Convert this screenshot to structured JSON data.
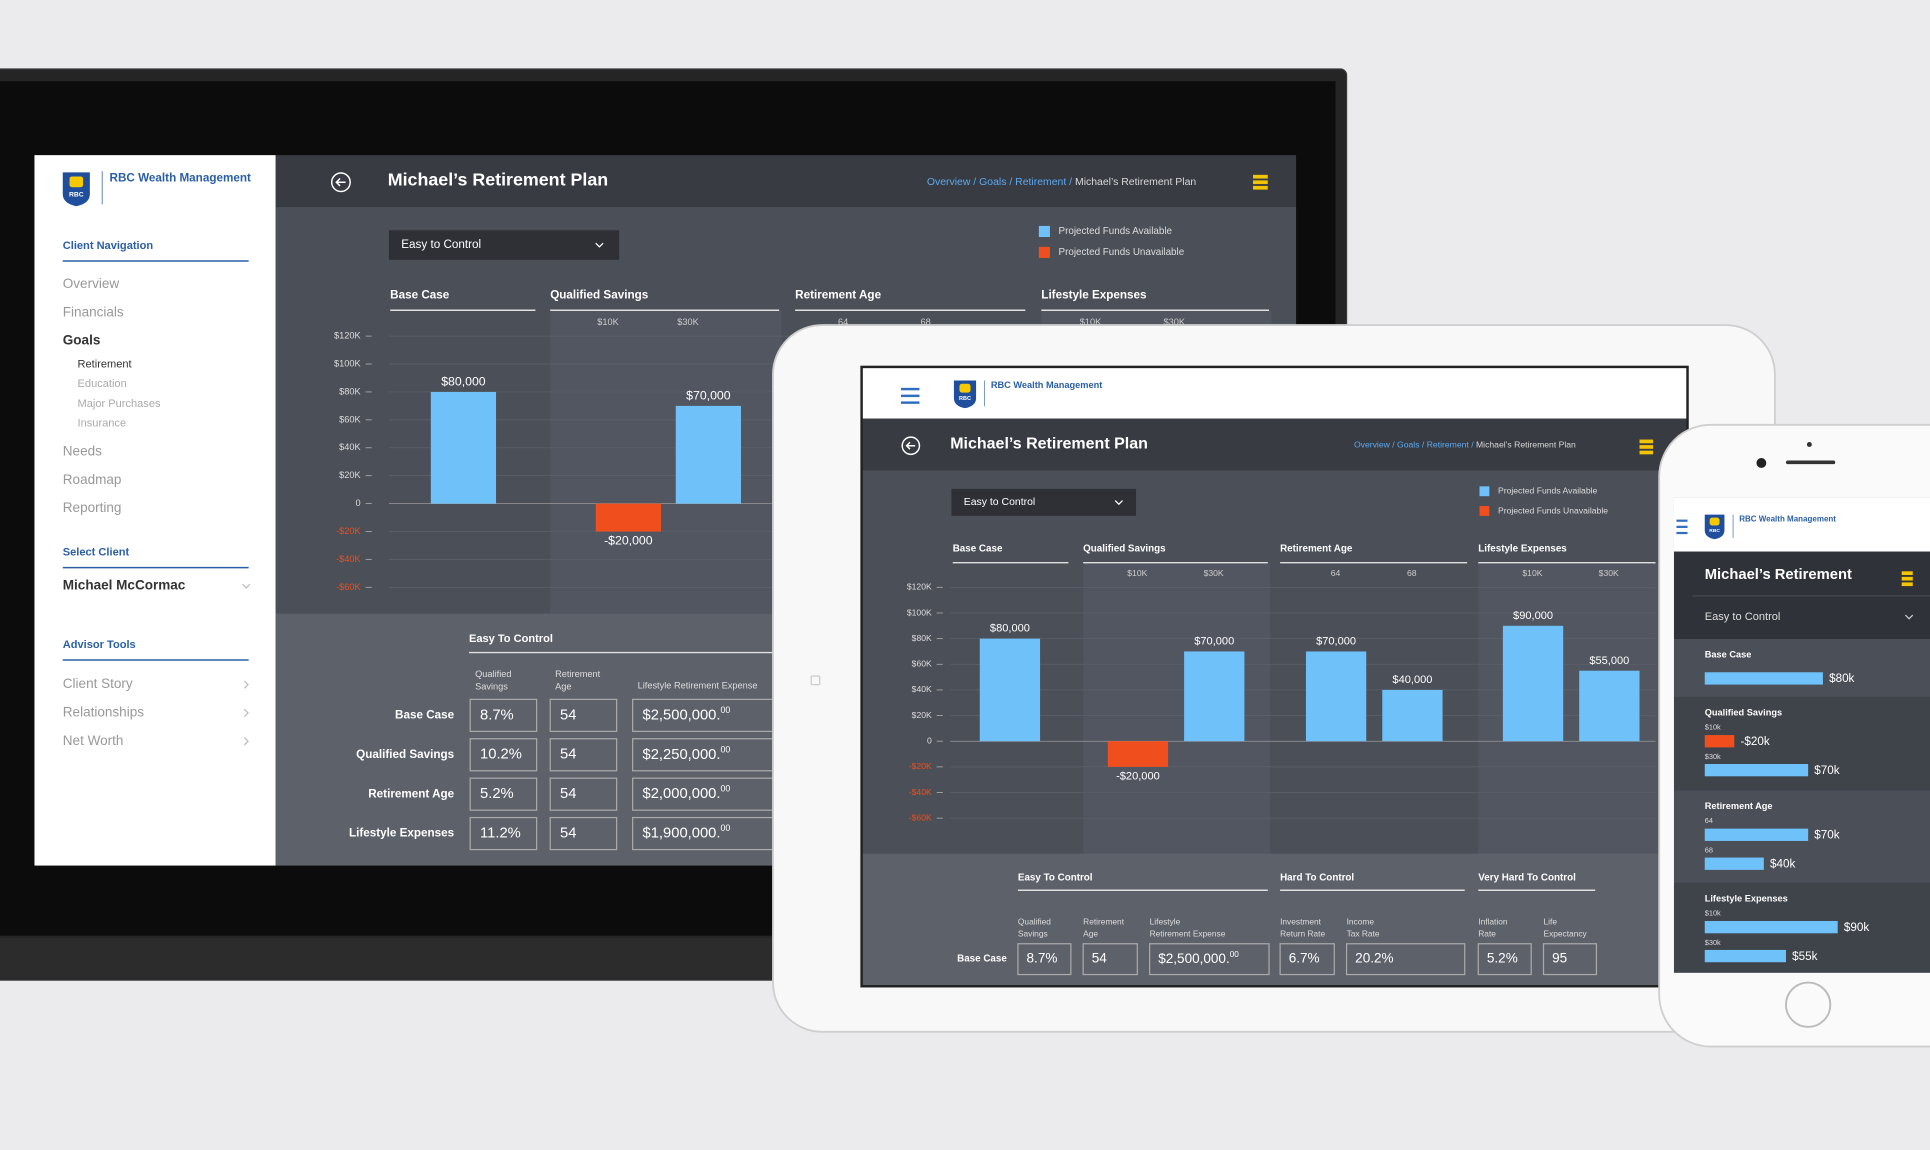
{
  "desktop": {
    "sidebar": {
      "logo": "RBC",
      "brand": "RBC Wealth Management",
      "client_navigation": {
        "heading": "Client Navigation",
        "items": [
          {
            "label": "Overview"
          },
          {
            "label": "Financials"
          },
          {
            "label": "Goals",
            "current": true,
            "children": [
              "Retirement",
              "Education",
              "Major Purchases",
              "Insurance"
            ],
            "current_child": 0
          },
          {
            "label": "Needs"
          },
          {
            "label": "Roadmap"
          },
          {
            "label": "Reporting"
          }
        ]
      },
      "select_client": {
        "heading": "Select Client",
        "client": "Michael McCormac"
      },
      "advisor_tools": {
        "heading": "Advisor Tools",
        "items": [
          "Client Story",
          "Relationships",
          "Net Worth"
        ]
      }
    },
    "header": {
      "title": "Michael’s Retirement Plan",
      "breadcrumb": [
        "Overview",
        "Goals",
        "Retirement",
        "Michael’s Retirement Plan"
      ],
      "breadcrumb_separator": " / "
    },
    "dropdown": "Easy to Control",
    "chart": {
      "type": "bar",
      "legend": [
        {
          "name": "Projected Funds Available",
          "color": "#6ec1f9"
        },
        {
          "name": "Projected Funds Unavailable",
          "color": "#f04f1d"
        }
      ],
      "ylim": [
        -60000,
        120000
      ],
      "yticks": [
        {
          "value": 120000,
          "label": "$120K"
        },
        {
          "value": 100000,
          "label": "$100K"
        },
        {
          "value": 80000,
          "label": "$80K"
        },
        {
          "value": 60000,
          "label": "$60K"
        },
        {
          "value": 40000,
          "label": "$40K"
        },
        {
          "value": 20000,
          "label": "$20K"
        },
        0,
        {
          "value": -20000,
          "label": "-$20K"
        },
        {
          "value": -40000,
          "label": "-$40K"
        },
        {
          "value": -60000,
          "label": "-$60K"
        }
      ],
      "groups": [
        {
          "name": "Base Case",
          "categories": [
            null
          ],
          "values": [
            80000
          ],
          "value_labels": [
            "$80,000"
          ]
        },
        {
          "name": "Qualified Savings",
          "categories": [
            "$10K",
            "$30K"
          ],
          "values": [
            -20000,
            70000
          ],
          "value_labels": [
            "-$20,000",
            "$70,000"
          ]
        },
        {
          "name": "Retirement Age",
          "categories": [
            "64",
            "68"
          ]
        },
        {
          "name": "Lifestyle Expenses",
          "categories": [
            "$10K",
            "$30K"
          ]
        }
      ]
    },
    "table": {
      "group": "Easy To Control",
      "columns": [
        [
          "Qualified",
          "Savings"
        ],
        [
          "Retirement",
          "Age"
        ],
        [
          "Lifestyle Retirement Expense"
        ]
      ],
      "rows": [
        {
          "label": "Base Case",
          "cells": [
            "8.7%",
            "54",
            {
              "amount": "$2,500,000.",
              "cents": "00"
            }
          ]
        },
        {
          "label": "Qualified Savings",
          "cells": [
            "10.2%",
            "54",
            {
              "amount": "$2,250,000.",
              "cents": "00"
            }
          ]
        },
        {
          "label": "Retirement Age",
          "cells": [
            "5.2%",
            "54",
            {
              "amount": "$2,000,000.",
              "cents": "00"
            }
          ]
        },
        {
          "label": "Lifestyle Expenses",
          "cells": [
            "11.2%",
            "54",
            {
              "amount": "$1,900,000.",
              "cents": "00"
            }
          ]
        }
      ]
    }
  },
  "tablet": {
    "logo": "RBC",
    "brand": "RBC Wealth Management",
    "header": {
      "title": "Michael’s Retirement Plan",
      "breadcrumb": [
        "Overview",
        "Goals",
        "Retirement",
        "Michael’s Retirement Plan"
      ],
      "breadcrumb_separator": " / "
    },
    "dropdown": "Easy to Control",
    "chart": {
      "type": "bar",
      "legend": [
        {
          "name": "Projected Funds Available",
          "color": "#6ec1f9"
        },
        {
          "name": "Projected Funds Unavailable",
          "color": "#f04f1d"
        }
      ],
      "ylim": [
        -60000,
        120000
      ],
      "yticks": [
        {
          "value": 120000,
          "label": "$120K"
        },
        {
          "value": 100000,
          "label": "$100K"
        },
        {
          "value": 80000,
          "label": "$80K"
        },
        {
          "value": 60000,
          "label": "$60K"
        },
        {
          "value": 40000,
          "label": "$40K"
        },
        {
          "value": 20000,
          "label": "$20K"
        },
        0,
        {
          "value": -20000,
          "label": "-$20K"
        },
        {
          "value": -40000,
          "label": "-$40K"
        },
        {
          "value": -60000,
          "label": "-$60K"
        }
      ],
      "groups": [
        {
          "name": "Base Case",
          "categories": [
            null
          ],
          "values": [
            80000
          ],
          "value_labels": [
            "$80,000"
          ]
        },
        {
          "name": "Qualified Savings",
          "categories": [
            "$10K",
            "$30K"
          ],
          "values": [
            -20000,
            70000
          ],
          "value_labels": [
            "-$20,000",
            "$70,000"
          ]
        },
        {
          "name": "Retirement Age",
          "categories": [
            "64",
            "68"
          ],
          "values": [
            70000,
            40000
          ],
          "value_labels": [
            "$70,000",
            "$40,000"
          ]
        },
        {
          "name": "Lifestyle Expenses",
          "categories": [
            "$10K",
            "$30K"
          ],
          "values": [
            90000,
            55000
          ],
          "value_labels": [
            "$90,000",
            "$55,000"
          ]
        }
      ]
    },
    "table": {
      "groups": [
        {
          "name": "Easy To Control",
          "columns": [
            [
              "Qualified",
              "Savings"
            ],
            [
              "Retirement",
              "Age"
            ],
            [
              "Lifestyle",
              "Retirement Expense"
            ]
          ]
        },
        {
          "name": "Hard To Control",
          "columns": [
            [
              "Investment",
              "Return Rate"
            ],
            [
              "Income",
              "Tax Rate"
            ]
          ]
        },
        {
          "name": "Very Hard To Control",
          "columns": [
            [
              "Inflation",
              "Rate"
            ],
            [
              "Life",
              "Expectancy"
            ]
          ]
        }
      ],
      "rows": [
        {
          "label": "Base Case",
          "cells": [
            "8.7%",
            "54",
            {
              "amount": "$2,500,000.",
              "cents": "00"
            },
            "6.7%",
            "20.2%",
            "5.2%",
            "95"
          ]
        }
      ]
    }
  },
  "phone": {
    "logo": "RBC",
    "brand": "RBC Wealth Management",
    "title": "Michael’s Retirement",
    "dropdown": "Easy to Control",
    "groups": [
      {
        "name": "Base Case",
        "categories": [
          null
        ],
        "values": [
          80000
        ],
        "value_labels": [
          "$80k"
        ]
      },
      {
        "name": "Qualified Savings",
        "categories": [
          "$10k",
          "$30k"
        ],
        "values": [
          -20000,
          70000
        ],
        "value_labels": [
          "-$20k",
          "$70k"
        ]
      },
      {
        "name": "Retirement Age",
        "categories": [
          "64",
          "68"
        ],
        "values": [
          70000,
          40000
        ],
        "value_labels": [
          "$70k",
          "$40k"
        ]
      },
      {
        "name": "Lifestyle Expenses",
        "categories": [
          "$10k",
          "$30k"
        ],
        "values": [
          90000,
          55000
        ],
        "value_labels": [
          "$90k",
          "$55k"
        ]
      }
    ]
  }
}
